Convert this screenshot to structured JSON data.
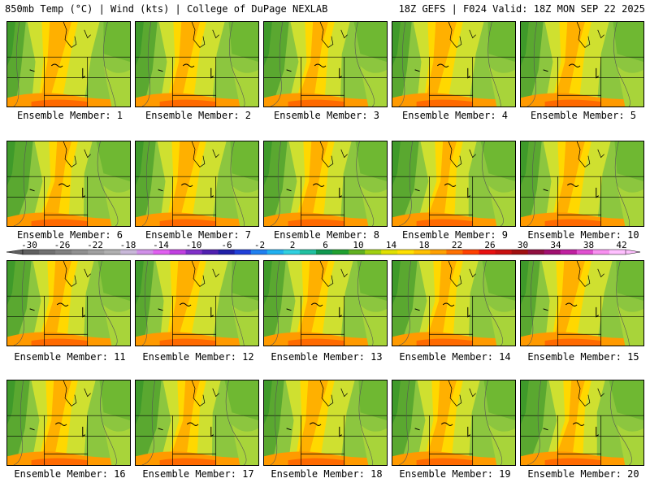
{
  "header": {
    "left": "850mb Temp (°C) | Wind (kts) | College of DuPage NEXLAB",
    "right": "18Z GEFS | F024 Valid: 18Z MON SEP 22 2025"
  },
  "panels": [
    {
      "label": "Ensemble Member: 1"
    },
    {
      "label": "Ensemble Member: 2"
    },
    {
      "label": "Ensemble Member: 3"
    },
    {
      "label": "Ensemble Member: 4"
    },
    {
      "label": "Ensemble Member: 5"
    },
    {
      "label": "Ensemble Member: 6"
    },
    {
      "label": "Ensemble Member: 7"
    },
    {
      "label": "Ensemble Member: 8"
    },
    {
      "label": "Ensemble Member: 9"
    },
    {
      "label": "Ensemble Member: 10"
    },
    {
      "label": "Ensemble Member: 11"
    },
    {
      "label": "Ensemble Member: 12"
    },
    {
      "label": "Ensemble Member: 13"
    },
    {
      "label": "Ensemble Member: 14"
    },
    {
      "label": "Ensemble Member: 15"
    },
    {
      "label": "Ensemble Member: 16"
    },
    {
      "label": "Ensemble Member: 17"
    },
    {
      "label": "Ensemble Member: 18"
    },
    {
      "label": "Ensemble Member: 19"
    },
    {
      "label": "Ensemble Member: 20"
    }
  ],
  "colorbar": {
    "ticks": [
      "-30",
      "-26",
      "-22",
      "-18",
      "-14",
      "-10",
      "-6",
      "-2",
      "2",
      "6",
      "10",
      "14",
      "18",
      "22",
      "26",
      "30",
      "34",
      "38",
      "42"
    ],
    "colors": [
      "#606060",
      "#707070",
      "#808080",
      "#909090",
      "#a0a0a0",
      "#b0b0b0",
      "#c8b8d8",
      "#d090e8",
      "#e060f0",
      "#c040e0",
      "#8030c8",
      "#5020b0",
      "#2020a8",
      "#2040d8",
      "#2080f0",
      "#20b0f0",
      "#30d0e0",
      "#20c0a0",
      "#109850",
      "#20a030",
      "#60b020",
      "#a0d010",
      "#e0e000",
      "#ffe000",
      "#ffc000",
      "#ffa000",
      "#ff7000",
      "#ff4000",
      "#e81010",
      "#c81010",
      "#a01010",
      "#901040",
      "#a01070",
      "#c020a0",
      "#e050d0",
      "#f890f0",
      "#ffc0ff"
    ]
  }
}
